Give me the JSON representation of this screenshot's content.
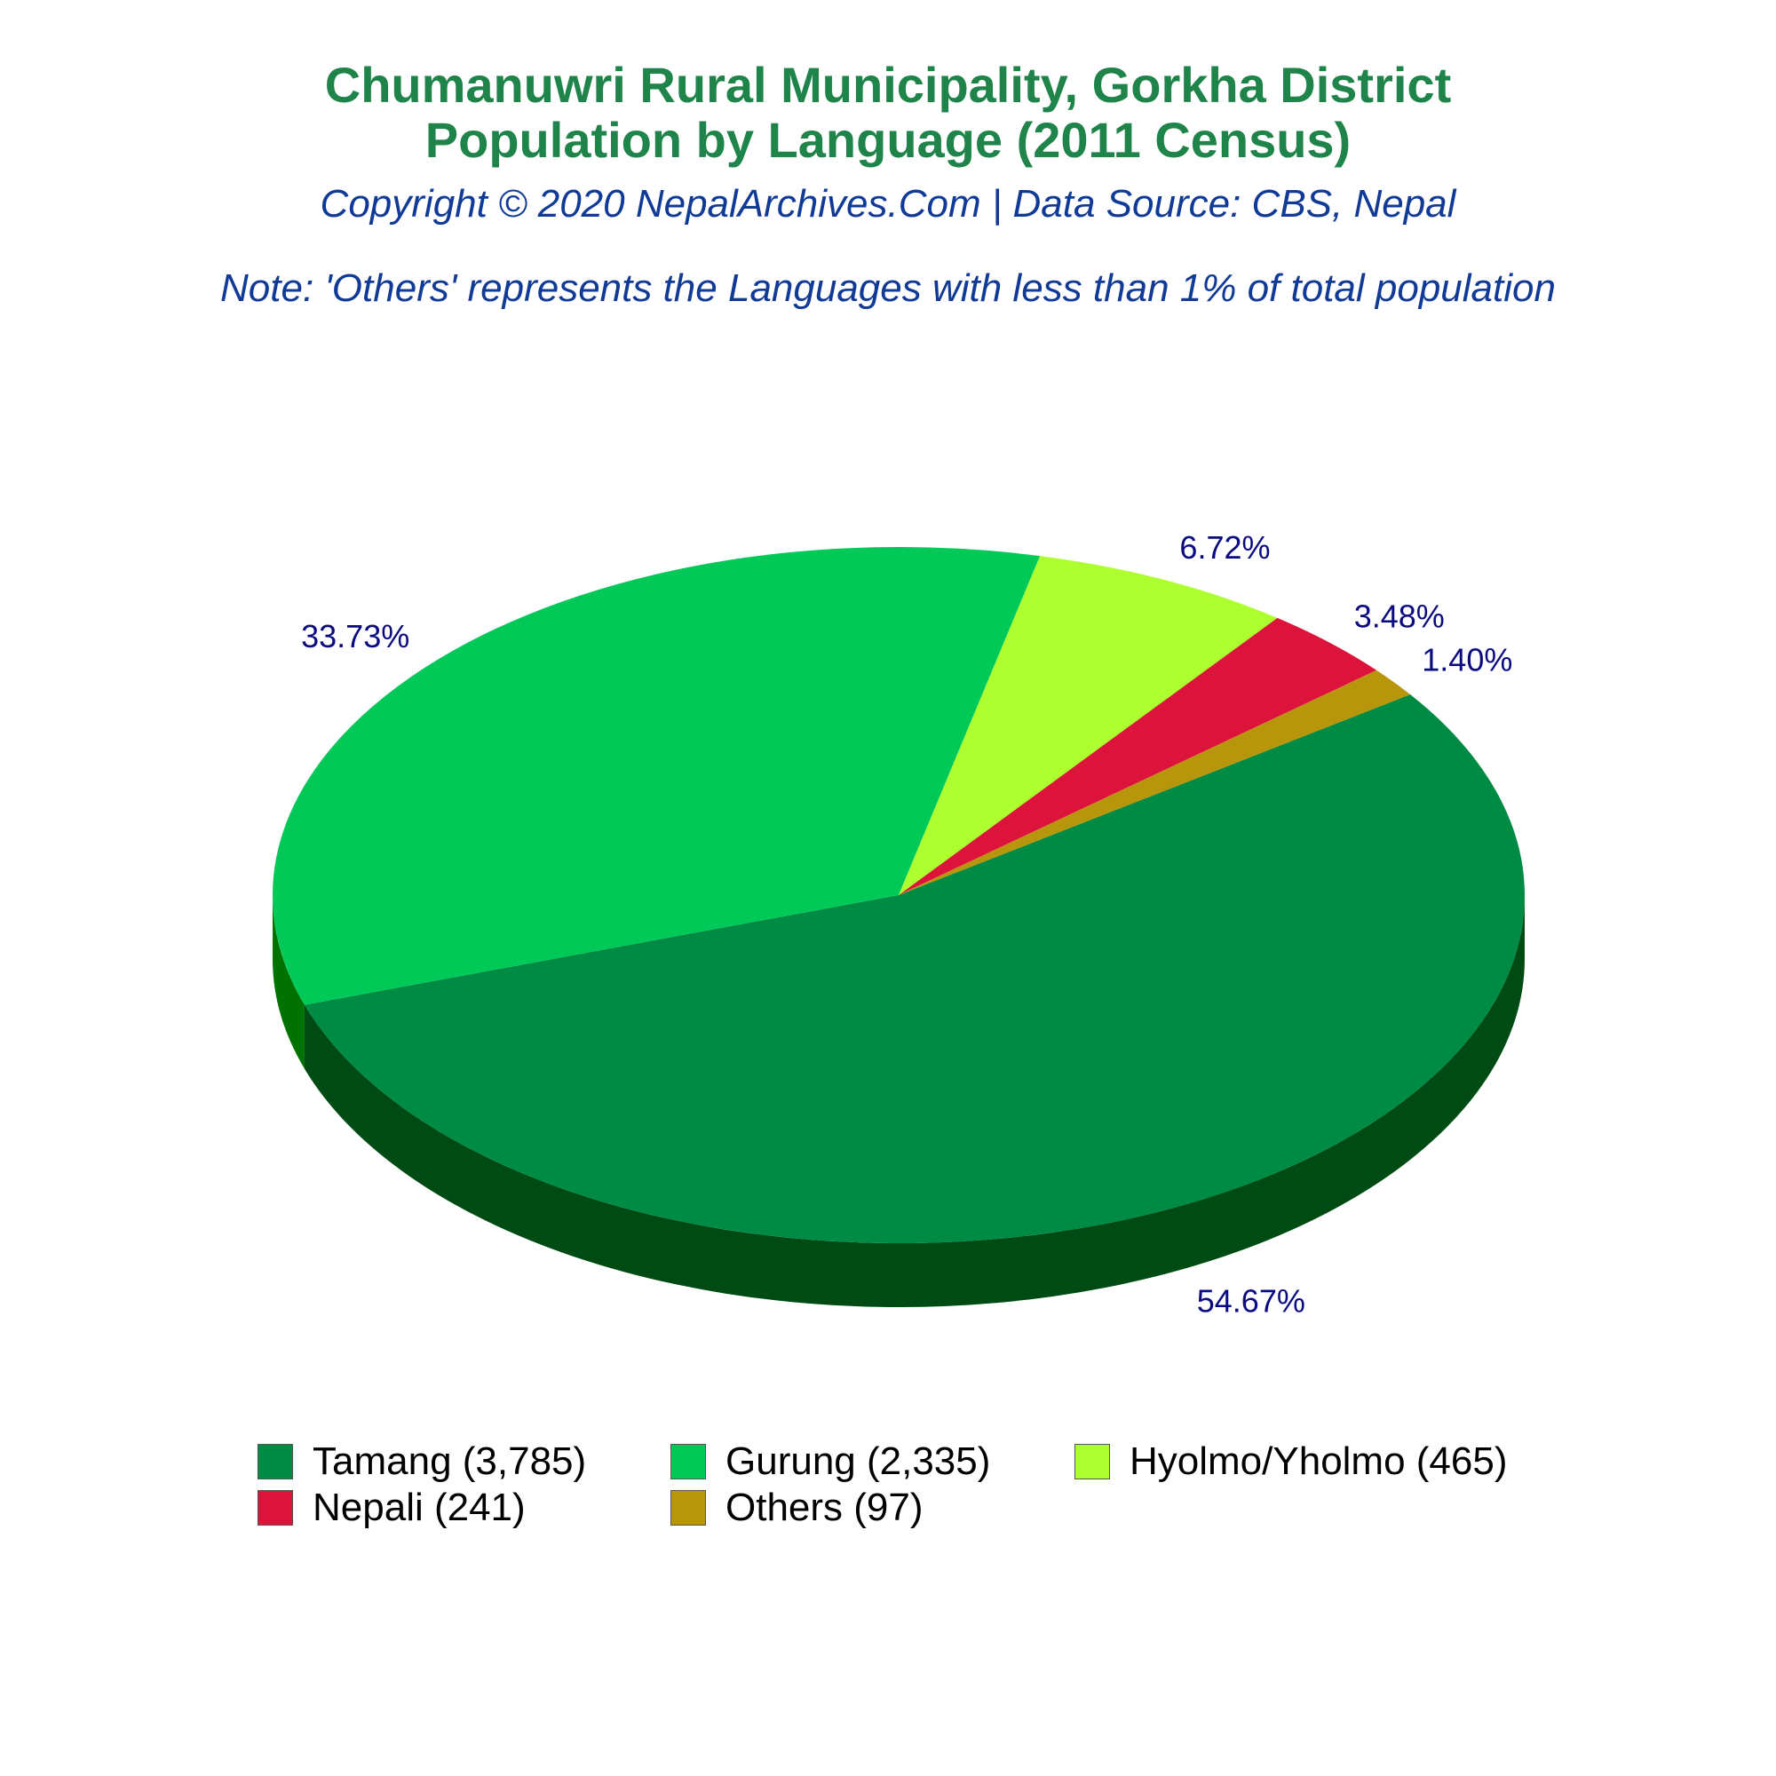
{
  "header": {
    "title_line_1": "Chumanuwri Rural Municipality, Gorkha District",
    "title_line_2": "Population by Language (2011 Census)",
    "copyright": "Copyright © 2020 NepalArchives.Com | Data Source: CBS, Nepal",
    "note": "Note: 'Others' represents the Languages with less than 1% of total population"
  },
  "chart_data": {
    "type": "pie",
    "style": "3d",
    "categories": [
      "Tamang",
      "Gurung",
      "Hyolmo/Yholmo",
      "Nepali",
      "Others"
    ],
    "values": [
      3785,
      2335,
      465,
      241,
      97
    ],
    "percent_labels": [
      "54.67%",
      "33.73%",
      "6.72%",
      "3.48%",
      "1.40%"
    ],
    "legend_labels": [
      "Tamang (3,785)",
      "Gurung (2,335)",
      "Hyolmo/Yholmo (465)",
      "Nepali (241)",
      "Others (97)"
    ],
    "colors": [
      "#008b45",
      "#00c957",
      "#adff2f",
      "#dc143c",
      "#b8960c"
    ],
    "side_colors": [
      "#004a14",
      "#007200",
      "#007200",
      "#007200",
      "#007200"
    ],
    "legend_position": "bottom"
  }
}
